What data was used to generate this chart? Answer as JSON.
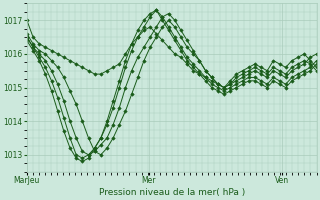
{
  "background_color": "#cce8dc",
  "plot_bg_color": "#cce8dc",
  "line_color": "#1a5c1a",
  "marker_color": "#1a5c1a",
  "grid_color": "#aaccbb",
  "xlabel": "Pression niveau de la mer( hPa )",
  "yticks": [
    1013,
    1014,
    1015,
    1016,
    1017
  ],
  "ylim": [
    1012.5,
    1017.5
  ],
  "xtick_labels": [
    "MarJeu",
    "Mer",
    "Ven"
  ],
  "xtick_positions": [
    0.0,
    0.42,
    0.88
  ],
  "series": [
    [
      1017.0,
      1016.5,
      1016.3,
      1016.2,
      1016.1,
      1016.0,
      1015.9,
      1015.8,
      1015.7,
      1015.6,
      1015.5,
      1015.4,
      1015.4,
      1015.5,
      1015.6,
      1015.7,
      1016.0,
      1016.3,
      1016.5,
      1016.7,
      1016.8,
      1016.6,
      1016.4,
      1016.2,
      1016.0,
      1015.9,
      1015.7,
      1015.5,
      1015.4,
      1015.3,
      1015.2,
      1015.1,
      1015.0,
      1015.2,
      1015.4,
      1015.5,
      1015.6,
      1015.7,
      1015.6,
      1015.5,
      1015.8,
      1015.7,
      1015.6,
      1015.8,
      1015.9,
      1016.0,
      1015.8,
      1015.6
    ],
    [
      1016.6,
      1016.3,
      1016.1,
      1016.0,
      1015.8,
      1015.6,
      1015.3,
      1014.9,
      1014.5,
      1014.0,
      1013.5,
      1013.1,
      1013.0,
      1013.2,
      1013.5,
      1013.9,
      1014.3,
      1014.8,
      1015.3,
      1015.8,
      1016.2,
      1016.5,
      1016.8,
      1017.0,
      1016.8,
      1016.5,
      1016.2,
      1016.0,
      1015.8,
      1015.5,
      1015.3,
      1015.1,
      1015.0,
      1015.1,
      1015.3,
      1015.4,
      1015.5,
      1015.6,
      1015.5,
      1015.4,
      1015.6,
      1015.5,
      1015.4,
      1015.6,
      1015.7,
      1015.8,
      1015.7,
      1015.5
    ],
    [
      1016.5,
      1016.2,
      1016.0,
      1015.8,
      1015.5,
      1015.1,
      1014.6,
      1014.0,
      1013.5,
      1013.1,
      1013.0,
      1013.1,
      1013.3,
      1013.5,
      1013.9,
      1014.4,
      1015.0,
      1015.5,
      1015.9,
      1016.2,
      1016.5,
      1016.8,
      1017.1,
      1017.2,
      1017.0,
      1016.7,
      1016.4,
      1016.1,
      1015.8,
      1015.5,
      1015.3,
      1015.1,
      1015.0,
      1015.1,
      1015.2,
      1015.3,
      1015.4,
      1015.5,
      1015.4,
      1015.3,
      1015.5,
      1015.4,
      1015.3,
      1015.5,
      1015.6,
      1015.7,
      1015.9,
      1016.0
    ],
    [
      1016.5,
      1016.2,
      1015.9,
      1015.6,
      1015.2,
      1014.7,
      1014.1,
      1013.5,
      1013.0,
      1012.9,
      1013.0,
      1013.2,
      1013.5,
      1013.9,
      1014.4,
      1015.0,
      1015.6,
      1016.1,
      1016.5,
      1016.8,
      1017.1,
      1017.3,
      1017.1,
      1016.8,
      1016.5,
      1016.2,
      1015.9,
      1015.7,
      1015.5,
      1015.3,
      1015.1,
      1015.0,
      1014.9,
      1015.0,
      1015.1,
      1015.2,
      1015.3,
      1015.3,
      1015.2,
      1015.1,
      1015.3,
      1015.2,
      1015.1,
      1015.3,
      1015.4,
      1015.5,
      1015.6,
      1015.8
    ],
    [
      1016.4,
      1016.1,
      1015.8,
      1015.4,
      1014.9,
      1014.3,
      1013.7,
      1013.2,
      1012.9,
      1012.8,
      1012.9,
      1013.2,
      1013.5,
      1014.0,
      1014.6,
      1015.2,
      1015.8,
      1016.3,
      1016.7,
      1017.0,
      1017.2,
      1017.3,
      1017.0,
      1016.7,
      1016.4,
      1016.1,
      1015.8,
      1015.6,
      1015.4,
      1015.2,
      1015.0,
      1014.9,
      1014.8,
      1014.9,
      1015.0,
      1015.1,
      1015.2,
      1015.2,
      1015.1,
      1015.0,
      1015.2,
      1015.1,
      1015.0,
      1015.2,
      1015.3,
      1015.4,
      1015.5,
      1015.7
    ]
  ],
  "figsize": [
    3.2,
    2.0
  ],
  "dpi": 100
}
